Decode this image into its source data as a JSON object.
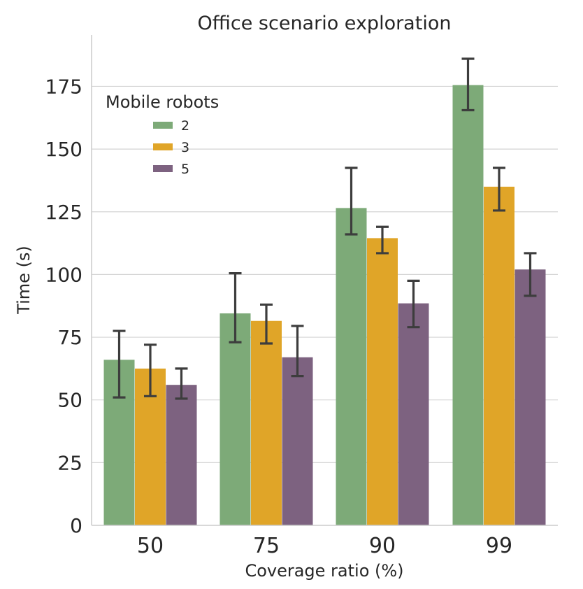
{
  "chart_data": {
    "type": "bar",
    "title": "Office scenario exploration",
    "xlabel": "Coverage ratio (%)",
    "ylabel": "Time (s)",
    "categories": [
      "50",
      "75",
      "90",
      "99"
    ],
    "ylim": [
      0,
      195
    ],
    "yticks": [
      0,
      25,
      50,
      75,
      100,
      125,
      150,
      175
    ],
    "grid": "horizontal",
    "legend": {
      "title": "Mobile robots",
      "placement": "top-left"
    },
    "series": [
      {
        "name": "2",
        "color": "#7daa78",
        "values": [
          66,
          84.5,
          126.5,
          175.5
        ],
        "err_low": [
          51,
          73,
          116,
          165.5
        ],
        "err_high": [
          77.5,
          100.5,
          142.5,
          186
        ]
      },
      {
        "name": "3",
        "color": "#e0a528",
        "values": [
          62.5,
          81.5,
          114.5,
          135
        ],
        "err_low": [
          51.5,
          72.5,
          108.5,
          125.5
        ],
        "err_high": [
          72,
          88,
          119,
          142.5
        ]
      },
      {
        "name": "5",
        "color": "#7d6280",
        "values": [
          56,
          67,
          88.5,
          102
        ],
        "err_low": [
          50.5,
          59.5,
          79,
          91.5
        ],
        "err_high": [
          62.5,
          79.5,
          97.5,
          108.5
        ]
      }
    ]
  }
}
